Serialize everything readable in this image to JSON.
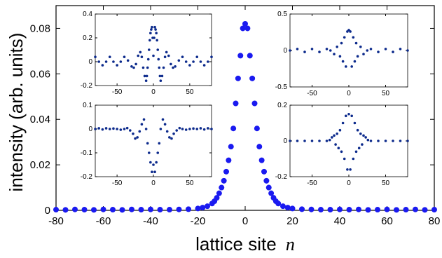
{
  "main": {
    "xlabel_text": "lattice site",
    "xlabel_var": "n",
    "ylabel": "intensity (arb. units)",
    "xticks": [
      "-80",
      "-60",
      "-40",
      "-20",
      "0",
      "20",
      "40",
      "60",
      "80"
    ],
    "yticks": [
      "0",
      "0.02",
      "0.04",
      "0.06",
      "0.08"
    ]
  },
  "chart_data": [
    {
      "type": "scatter",
      "xlabel": "lattice site n",
      "ylabel": "intensity (arb. units)",
      "xlim": [
        -80,
        80
      ],
      "ylim": [
        0,
        0.09
      ],
      "marker_color": "#1a1af0",
      "x": [
        -80,
        -76,
        -72,
        -68,
        -64,
        -60,
        -56,
        -52,
        -48,
        -44,
        -40,
        -36,
        -32,
        -28,
        -24,
        -20,
        -18,
        -16,
        -14,
        -13,
        -12,
        -11,
        -10,
        -9,
        -8,
        -7,
        -6,
        -5,
        -4,
        -3,
        -2,
        -1,
        0,
        1,
        2,
        3,
        4,
        5,
        6,
        7,
        8,
        9,
        10,
        11,
        12,
        13,
        14,
        16,
        18,
        20,
        24,
        28,
        32,
        36,
        40,
        44,
        48,
        52,
        56,
        60,
        64,
        68,
        72,
        76,
        80
      ],
      "y": [
        0.0003,
        0.0002,
        0.0004,
        0.0003,
        0.0002,
        0.0004,
        0.0003,
        0.0002,
        0.0004,
        0.0003,
        0.0004,
        0.0003,
        0.0003,
        0.0004,
        0.0005,
        0.0008,
        0.0012,
        0.0018,
        0.003,
        0.004,
        0.0055,
        0.0075,
        0.01,
        0.013,
        0.017,
        0.022,
        0.028,
        0.036,
        0.047,
        0.058,
        0.068,
        0.08,
        0.082,
        0.08,
        0.068,
        0.058,
        0.047,
        0.036,
        0.028,
        0.022,
        0.017,
        0.013,
        0.01,
        0.0075,
        0.0055,
        0.004,
        0.003,
        0.0018,
        0.0012,
        0.0008,
        0.0005,
        0.0004,
        0.0003,
        0.0003,
        0.0004,
        0.0003,
        0.0004,
        0.0002,
        0.0003,
        0.0004,
        0.0002,
        0.0003,
        0.0004,
        0.0002,
        0.0003
      ]
    },
    {
      "type": "scatter",
      "position": "top-left inset",
      "xlim": [
        -80,
        80
      ],
      "ylim": [
        -0.2,
        0.4
      ],
      "xticks": [
        "-50",
        "0",
        "50"
      ],
      "yticks": [
        "-0.2",
        "0",
        "0.2",
        "0.4"
      ],
      "marker_color": "#0c2a8c",
      "x": [
        -80,
        -75,
        -70,
        -65,
        -60,
        -55,
        -50,
        -45,
        -40,
        -35,
        -30,
        -27,
        -24,
        -21,
        -18,
        -16,
        -14,
        -12,
        -10,
        -9,
        -8,
        -7,
        -6,
        -5,
        -4,
        -3,
        -2,
        -1,
        0,
        1,
        2,
        3,
        4,
        5,
        6,
        7,
        8,
        9,
        10,
        12,
        14,
        16,
        18,
        21,
        24,
        27,
        30,
        35,
        40,
        45,
        50,
        55,
        60,
        65,
        70,
        75,
        80
      ],
      "y": [
        0.04,
        0.0,
        -0.03,
        0.0,
        0.04,
        0.0,
        -0.03,
        0.0,
        0.04,
        0.01,
        -0.04,
        -0.05,
        -0.02,
        0.05,
        0.08,
        0.04,
        -0.05,
        -0.12,
        -0.16,
        -0.12,
        -0.05,
        0.02,
        0.1,
        0.18,
        0.24,
        0.27,
        0.29,
        0.2,
        0.05,
        0.2,
        0.29,
        0.27,
        0.24,
        0.18,
        0.1,
        0.02,
        -0.05,
        -0.12,
        -0.16,
        -0.12,
        -0.05,
        0.04,
        0.08,
        0.05,
        -0.02,
        -0.05,
        -0.04,
        0.01,
        0.04,
        0.0,
        -0.03,
        0.0,
        0.04,
        0.0,
        -0.03,
        0.0,
        0.04
      ]
    },
    {
      "type": "scatter",
      "position": "top-right inset",
      "xlim": [
        -80,
        80
      ],
      "ylim": [
        -0.5,
        0.5
      ],
      "xticks": [
        "-50",
        "0",
        "50"
      ],
      "yticks": [
        "-0.5",
        "0",
        "0.5"
      ],
      "marker_color": "#0c2a8c",
      "x": [
        -80,
        -70,
        -60,
        -50,
        -40,
        -30,
        -25,
        -20,
        -16,
        -12,
        -10,
        -8,
        -6,
        -4,
        -2,
        0,
        2,
        4,
        6,
        8,
        10,
        12,
        16,
        20,
        25,
        30,
        40,
        50,
        60,
        70,
        80
      ],
      "y": [
        0.0,
        0.02,
        -0.02,
        0.02,
        -0.02,
        0.02,
        0.0,
        -0.05,
        0.05,
        -0.08,
        0.1,
        -0.15,
        0.18,
        -0.22,
        0.26,
        0.28,
        0.26,
        -0.22,
        0.18,
        -0.15,
        0.1,
        -0.08,
        0.05,
        -0.05,
        0.0,
        0.02,
        -0.02,
        0.02,
        -0.02,
        0.02,
        0.0
      ]
    },
    {
      "type": "scatter",
      "position": "bottom-left inset",
      "xlim": [
        -80,
        80
      ],
      "ylim": [
        -0.2,
        0.1
      ],
      "xticks": [
        "-50",
        "0",
        "50"
      ],
      "yticks": [
        "-0.2",
        "-0.1",
        "0",
        "0.1"
      ],
      "marker_color": "#0c2a8c",
      "x": [
        -80,
        -75,
        -70,
        -65,
        -60,
        -55,
        -50,
        -45,
        -40,
        -36,
        -32,
        -28,
        -25,
        -22,
        -19,
        -16,
        -13,
        -10,
        -8,
        -6,
        -4,
        -2,
        0,
        2,
        4,
        6,
        8,
        10,
        13,
        16,
        19,
        22,
        25,
        28,
        32,
        36,
        40,
        45,
        50,
        55,
        60,
        65,
        70,
        75,
        80
      ],
      "y": [
        0.0,
        0.003,
        -0.002,
        0.003,
        0.0,
        0.002,
        0.0,
        -0.003,
        0.0,
        0.004,
        -0.006,
        -0.02,
        -0.04,
        -0.035,
        -0.01,
        0.02,
        0.04,
        0.0,
        -0.06,
        -0.1,
        -0.14,
        -0.18,
        -0.15,
        -0.18,
        -0.14,
        -0.1,
        -0.06,
        0.0,
        0.04,
        0.02,
        -0.01,
        -0.035,
        -0.04,
        -0.02,
        -0.006,
        0.004,
        0.0,
        -0.003,
        0.0,
        0.002,
        0.0,
        0.003,
        -0.002,
        0.003,
        0.0
      ]
    },
    {
      "type": "scatter",
      "position": "bottom-right inset",
      "xlim": [
        -80,
        80
      ],
      "ylim": [
        -0.2,
        0.2
      ],
      "xticks": [
        "-50",
        "0",
        "50"
      ],
      "yticks": [
        "-0.2",
        "0",
        "0.2"
      ],
      "marker_color": "#0c2a8c",
      "x": [
        -80,
        -70,
        -60,
        -50,
        -40,
        -30,
        -26,
        -23,
        -20,
        -18,
        -16,
        -14,
        -12,
        -10,
        -8,
        -6,
        -4,
        -2,
        0,
        2,
        4,
        6,
        8,
        10,
        12,
        14,
        16,
        18,
        20,
        23,
        26,
        30,
        40,
        50,
        60,
        70,
        80
      ],
      "y": [
        0.0,
        0.0,
        0.0,
        0.0,
        0.0,
        0.0,
        0.005,
        0.02,
        0.03,
        -0.02,
        0.04,
        -0.04,
        0.06,
        -0.06,
        0.1,
        -0.1,
        0.14,
        -0.16,
        0.15,
        -0.16,
        0.14,
        -0.1,
        0.1,
        -0.06,
        0.06,
        -0.04,
        0.04,
        -0.02,
        0.03,
        0.02,
        0.005,
        0.0,
        0.0,
        0.0,
        0.0,
        0.0,
        0.0
      ]
    }
  ]
}
